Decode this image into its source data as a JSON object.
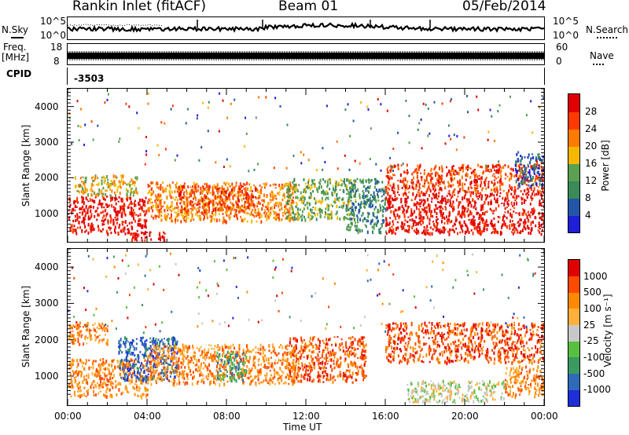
{
  "header": {
    "station": "Rankin Inlet (fitACF)",
    "beam": "Beam 01",
    "date": "05/Feb/2014"
  },
  "strip": {
    "nsky_label": "N.Sky",
    "nsearch_label": "N.Search",
    "noise_tick_top": "10^5",
    "noise_tick_bottom": "10^0",
    "freq_label_1": "Freq.",
    "freq_label_2": "[MHz]",
    "freq_tick_top": "18",
    "freq_tick_bottom": "8",
    "nave_label": "Nave",
    "nave_tick_top": "60",
    "nave_tick_bottom": "0",
    "cpid_label": "CPID",
    "cpid_value": "-3503"
  },
  "axes": {
    "ylabel": "Slant Range [km]",
    "xlabel": "Time UT",
    "y_ticks": [
      "1000",
      "2000",
      "3000",
      "4000"
    ],
    "x_ticks": [
      "00:00",
      "04:00",
      "08:00",
      "12:00",
      "16:00",
      "20:00",
      "00:00"
    ]
  },
  "chart_data": [
    {
      "type": "heatmap",
      "name": "power",
      "colorbar_label": "Power [dB]",
      "colorbar_ticks": [
        "28",
        "24",
        "20",
        "16",
        "12",
        "8",
        "4"
      ],
      "colors": [
        "#1f1fd8",
        "#2356a8",
        "#3a8a5a",
        "#5aa050",
        "#f5b800",
        "#ff7a00",
        "#ff3a00",
        "#e10000"
      ],
      "ylim": [
        200,
        4500
      ],
      "xlim": [
        "00:00",
        "24:00"
      ],
      "echo_regions": [
        {
          "t0": 0.0,
          "t1": 4.0,
          "r0": 450,
          "r1": 1500,
          "level": 7
        },
        {
          "t0": 0.3,
          "t1": 3.5,
          "r0": 1500,
          "r1": 2100,
          "level": 4
        },
        {
          "t0": 4.0,
          "t1": 11.5,
          "r0": 800,
          "r1": 1900,
          "level": 5
        },
        {
          "t0": 5.5,
          "t1": 9.5,
          "r0": 1100,
          "r1": 1800,
          "level": 6
        },
        {
          "t0": 11.0,
          "t1": 14.5,
          "r0": 850,
          "r1": 2000,
          "level": 3
        },
        {
          "t0": 14.0,
          "t1": 16.0,
          "r0": 500,
          "r1": 2000,
          "level": 2
        },
        {
          "t0": 16.0,
          "t1": 24.0,
          "r0": 450,
          "r1": 1600,
          "level": 7
        },
        {
          "t0": 16.0,
          "t1": 24.0,
          "r0": 1600,
          "r1": 2400,
          "level": 6
        },
        {
          "t0": 3.0,
          "t1": 5.0,
          "r0": 250,
          "r1": 500,
          "level": 7
        },
        {
          "t0": 22.5,
          "t1": 24.0,
          "r0": 1800,
          "r1": 2700,
          "level": 1
        }
      ]
    },
    {
      "type": "heatmap",
      "name": "velocity",
      "colorbar_label": "Velocity [m s⁻¹]",
      "colorbar_ticks": [
        "1000",
        "500",
        "100",
        "25",
        "-25",
        "-100",
        "-500",
        "-1000"
      ],
      "colors": [
        "#1f2fd8",
        "#2e6ab8",
        "#3a9a60",
        "#58c040",
        "#c8c8c8",
        "#ffb03a",
        "#ff8a00",
        "#ff4a00",
        "#e10000"
      ],
      "ylim": [
        200,
        4500
      ],
      "xlim": [
        "00:00",
        "24:00"
      ],
      "echo_regions": [
        {
          "t0": 0.0,
          "t1": 4.0,
          "r0": 450,
          "r1": 1500,
          "level": 6
        },
        {
          "t0": 2.5,
          "t1": 5.5,
          "r0": 900,
          "r1": 2100,
          "level": 1
        },
        {
          "t0": 4.0,
          "t1": 11.5,
          "r0": 800,
          "r1": 1900,
          "level": 6
        },
        {
          "t0": 7.5,
          "t1": 9.0,
          "r0": 900,
          "r1": 1700,
          "level": 2
        },
        {
          "t0": 11.0,
          "t1": 15.0,
          "r0": 850,
          "r1": 2100,
          "level": 7
        },
        {
          "t0": 16.0,
          "t1": 24.0,
          "r0": 1400,
          "r1": 2500,
          "level": 7
        },
        {
          "t0": 17.0,
          "t1": 22.0,
          "r0": 300,
          "r1": 900,
          "level": 4
        },
        {
          "t0": 22.0,
          "t1": 24.0,
          "r0": 450,
          "r1": 1300,
          "level": 6
        },
        {
          "t0": 0.0,
          "t1": 2.0,
          "r0": 1900,
          "r1": 2500,
          "level": 6
        }
      ]
    }
  ]
}
